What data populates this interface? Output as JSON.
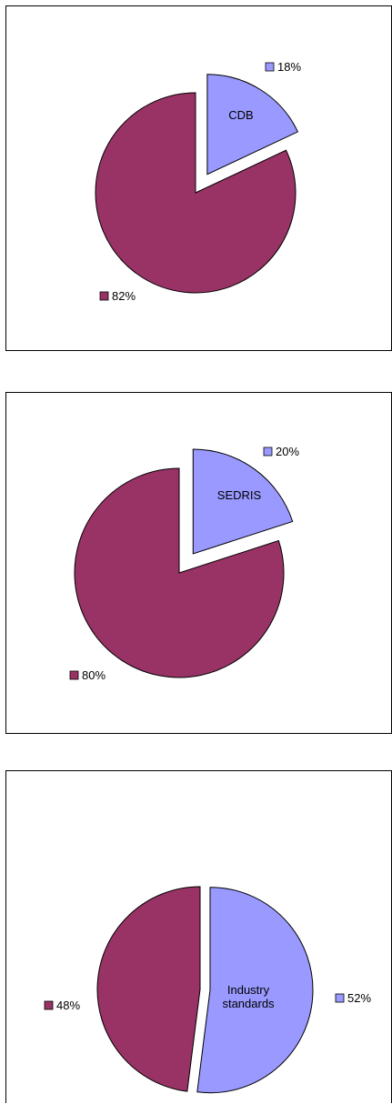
{
  "colors": {
    "primary": "#993366",
    "secondary": "#9999FF",
    "border": "#000000"
  },
  "chart_data": [
    {
      "type": "pie",
      "slices": [
        {
          "label": "CDB",
          "value": 18,
          "color": "#9999FF",
          "exploded": true
        },
        {
          "label": "",
          "value": 82,
          "color": "#993366",
          "exploded": false
        }
      ],
      "legend": [
        {
          "text": "18%",
          "color": "#9999FF"
        },
        {
          "text": "82%",
          "color": "#993366"
        }
      ]
    },
    {
      "type": "pie",
      "slices": [
        {
          "label": "SEDRIS",
          "value": 20,
          "color": "#9999FF",
          "exploded": true
        },
        {
          "label": "",
          "value": 80,
          "color": "#993366",
          "exploded": false
        }
      ],
      "legend": [
        {
          "text": "20%",
          "color": "#9999FF"
        },
        {
          "text": "80%",
          "color": "#993366"
        }
      ]
    },
    {
      "type": "pie",
      "slices": [
        {
          "label": "Industry standards",
          "value": 52,
          "color": "#9999FF",
          "exploded": true
        },
        {
          "label": "",
          "value": 48,
          "color": "#993366",
          "exploded": false
        }
      ],
      "legend": [
        {
          "text": "52%",
          "color": "#9999FF"
        },
        {
          "text": "48%",
          "color": "#993366"
        }
      ]
    }
  ]
}
